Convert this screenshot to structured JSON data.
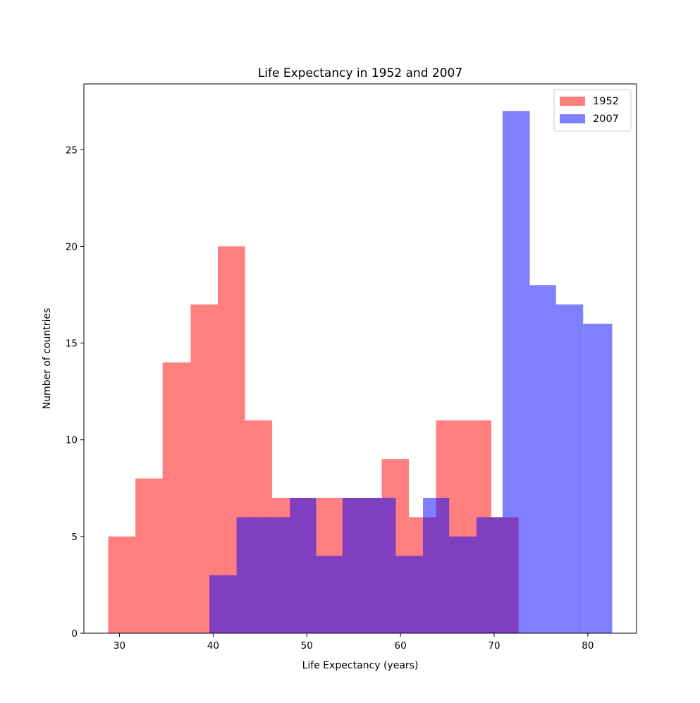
{
  "chart_data": {
    "type": "bar",
    "title": "Life Expectancy in 1952 and 2007",
    "xlabel": "Life Expectancy (years)",
    "ylabel": "Number of countries",
    "xlim": [
      26.2,
      85.2
    ],
    "ylim": [
      0,
      28.4
    ],
    "xticks": [
      30,
      40,
      50,
      60,
      70,
      80
    ],
    "yticks": [
      0,
      5,
      10,
      15,
      20,
      25
    ],
    "grid": false,
    "legend": "top-right",
    "series": [
      {
        "name": "1952",
        "color": "#ff0000",
        "opacity": 0.5,
        "bin_edges": [
          28.8,
          31.7,
          34.6,
          37.6,
          40.5,
          43.4,
          46.3,
          49.2,
          52.2,
          55.1,
          58.0,
          60.9,
          63.8,
          66.8,
          69.7,
          72.6
        ],
        "counts": [
          5,
          8,
          14,
          17,
          20,
          11,
          7,
          7,
          7,
          7,
          9,
          6,
          11,
          11,
          6
        ]
      },
      {
        "name": "2007",
        "color": "#0000ff",
        "opacity": 0.5,
        "bin_edges": [
          39.6,
          42.5,
          45.3,
          48.2,
          51.0,
          53.8,
          56.7,
          59.5,
          62.4,
          65.2,
          68.1,
          70.9,
          73.8,
          76.6,
          79.5,
          82.6
        ],
        "counts": [
          3,
          6,
          6,
          7,
          4,
          7,
          7,
          4,
          7,
          5,
          6,
          27,
          18,
          17,
          16
        ]
      }
    ]
  }
}
